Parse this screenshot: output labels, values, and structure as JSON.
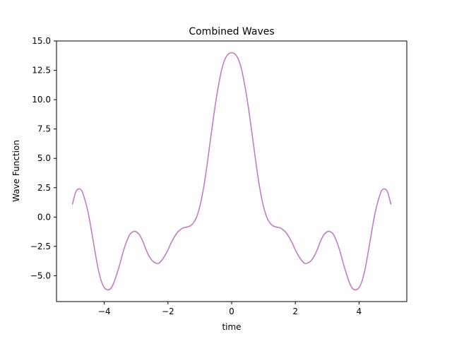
{
  "chart_data": {
    "type": "line",
    "title": "Combined Waves",
    "xlabel": "time",
    "ylabel": "Wave Function",
    "xlim": [
      -5.5,
      5.5
    ],
    "ylim": [
      -7.2,
      15.0
    ],
    "xticks": [
      {
        "value": -4,
        "label": "−4"
      },
      {
        "value": -2,
        "label": "−2"
      },
      {
        "value": 0,
        "label": "0"
      },
      {
        "value": 2,
        "label": "2"
      },
      {
        "value": 4,
        "label": "4"
      }
    ],
    "yticks": [
      {
        "value": -5.0,
        "label": "−5.0"
      },
      {
        "value": -2.5,
        "label": "−2.5"
      },
      {
        "value": 0.0,
        "label": "0.0"
      },
      {
        "value": 2.5,
        "label": "2.5"
      },
      {
        "value": 5.0,
        "label": "5.0"
      },
      {
        "value": 7.5,
        "label": "7.5"
      },
      {
        "value": 10.0,
        "label": "10.0"
      },
      {
        "value": 12.5,
        "label": "12.5"
      },
      {
        "value": 15.0,
        "label": "15.0"
      }
    ],
    "grid": false,
    "series": [
      {
        "color": "#bf7fbf",
        "points": [
          {
            "x": -5.0,
            "y": 1.1
          },
          {
            "x": -4.9,
            "y": 2.1
          },
          {
            "x": -4.8,
            "y": 2.4
          },
          {
            "x": -4.7,
            "y": 2.2
          },
          {
            "x": -4.6,
            "y": 1.4
          },
          {
            "x": -4.5,
            "y": 0.3
          },
          {
            "x": -4.4,
            "y": -1.2
          },
          {
            "x": -4.3,
            "y": -2.8
          },
          {
            "x": -4.2,
            "y": -4.3
          },
          {
            "x": -4.1,
            "y": -5.4
          },
          {
            "x": -4.0,
            "y": -6.0
          },
          {
            "x": -3.9,
            "y": -6.2
          },
          {
            "x": -3.8,
            "y": -6.1
          },
          {
            "x": -3.7,
            "y": -5.6
          },
          {
            "x": -3.6,
            "y": -4.8
          },
          {
            "x": -3.5,
            "y": -3.9
          },
          {
            "x": -3.4,
            "y": -2.9
          },
          {
            "x": -3.3,
            "y": -2.1
          },
          {
            "x": -3.2,
            "y": -1.5
          },
          {
            "x": -3.1,
            "y": -1.25
          },
          {
            "x": -3.0,
            "y": -1.25
          },
          {
            "x": -2.9,
            "y": -1.5
          },
          {
            "x": -2.8,
            "y": -2.0
          },
          {
            "x": -2.7,
            "y": -2.7
          },
          {
            "x": -2.6,
            "y": -3.3
          },
          {
            "x": -2.5,
            "y": -3.7
          },
          {
            "x": -2.4,
            "y": -3.9
          },
          {
            "x": -2.3,
            "y": -3.95
          },
          {
            "x": -2.2,
            "y": -3.7
          },
          {
            "x": -2.1,
            "y": -3.3
          },
          {
            "x": -2.0,
            "y": -2.8
          },
          {
            "x": -1.9,
            "y": -2.2
          },
          {
            "x": -1.8,
            "y": -1.7
          },
          {
            "x": -1.7,
            "y": -1.3
          },
          {
            "x": -1.6,
            "y": -1.05
          },
          {
            "x": -1.5,
            "y": -0.9
          },
          {
            "x": -1.4,
            "y": -0.85
          },
          {
            "x": -1.3,
            "y": -0.75
          },
          {
            "x": -1.2,
            "y": -0.5
          },
          {
            "x": -1.1,
            "y": 0.0
          },
          {
            "x": -1.0,
            "y": 0.9
          },
          {
            "x": -0.9,
            "y": 2.2
          },
          {
            "x": -0.8,
            "y": 3.9
          },
          {
            "x": -0.7,
            "y": 5.9
          },
          {
            "x": -0.6,
            "y": 7.9
          },
          {
            "x": -0.5,
            "y": 9.8
          },
          {
            "x": -0.4,
            "y": 11.4
          },
          {
            "x": -0.3,
            "y": 12.7
          },
          {
            "x": -0.2,
            "y": 13.5
          },
          {
            "x": -0.1,
            "y": 13.9
          },
          {
            "x": 0.0,
            "y": 14.0
          },
          {
            "x": 0.1,
            "y": 13.9
          },
          {
            "x": 0.2,
            "y": 13.5
          },
          {
            "x": 0.3,
            "y": 12.7
          },
          {
            "x": 0.4,
            "y": 11.4
          },
          {
            "x": 0.5,
            "y": 9.8
          },
          {
            "x": 0.6,
            "y": 7.9
          },
          {
            "x": 0.7,
            "y": 5.9
          },
          {
            "x": 0.8,
            "y": 3.9
          },
          {
            "x": 0.9,
            "y": 2.2
          },
          {
            "x": 1.0,
            "y": 0.9
          },
          {
            "x": 1.1,
            "y": 0.0
          },
          {
            "x": 1.2,
            "y": -0.5
          },
          {
            "x": 1.3,
            "y": -0.75
          },
          {
            "x": 1.4,
            "y": -0.85
          },
          {
            "x": 1.5,
            "y": -0.9
          },
          {
            "x": 1.6,
            "y": -1.05
          },
          {
            "x": 1.7,
            "y": -1.3
          },
          {
            "x": 1.8,
            "y": -1.7
          },
          {
            "x": 1.9,
            "y": -2.2
          },
          {
            "x": 2.0,
            "y": -2.8
          },
          {
            "x": 2.1,
            "y": -3.3
          },
          {
            "x": 2.2,
            "y": -3.7
          },
          {
            "x": 2.3,
            "y": -3.95
          },
          {
            "x": 2.4,
            "y": -3.9
          },
          {
            "x": 2.5,
            "y": -3.7
          },
          {
            "x": 2.6,
            "y": -3.3
          },
          {
            "x": 2.7,
            "y": -2.7
          },
          {
            "x": 2.8,
            "y": -2.0
          },
          {
            "x": 2.9,
            "y": -1.5
          },
          {
            "x": 3.0,
            "y": -1.25
          },
          {
            "x": 3.1,
            "y": -1.25
          },
          {
            "x": 3.2,
            "y": -1.5
          },
          {
            "x": 3.3,
            "y": -2.1
          },
          {
            "x": 3.4,
            "y": -2.9
          },
          {
            "x": 3.5,
            "y": -3.9
          },
          {
            "x": 3.6,
            "y": -4.8
          },
          {
            "x": 3.7,
            "y": -5.6
          },
          {
            "x": 3.8,
            "y": -6.1
          },
          {
            "x": 3.9,
            "y": -6.2
          },
          {
            "x": 4.0,
            "y": -6.0
          },
          {
            "x": 4.1,
            "y": -5.4
          },
          {
            "x": 4.2,
            "y": -4.3
          },
          {
            "x": 4.3,
            "y": -2.8
          },
          {
            "x": 4.4,
            "y": -1.2
          },
          {
            "x": 4.5,
            "y": 0.3
          },
          {
            "x": 4.6,
            "y": 1.4
          },
          {
            "x": 4.7,
            "y": 2.2
          },
          {
            "x": 4.8,
            "y": 2.4
          },
          {
            "x": 4.9,
            "y": 2.1
          },
          {
            "x": 5.0,
            "y": 1.1
          }
        ]
      }
    ]
  }
}
